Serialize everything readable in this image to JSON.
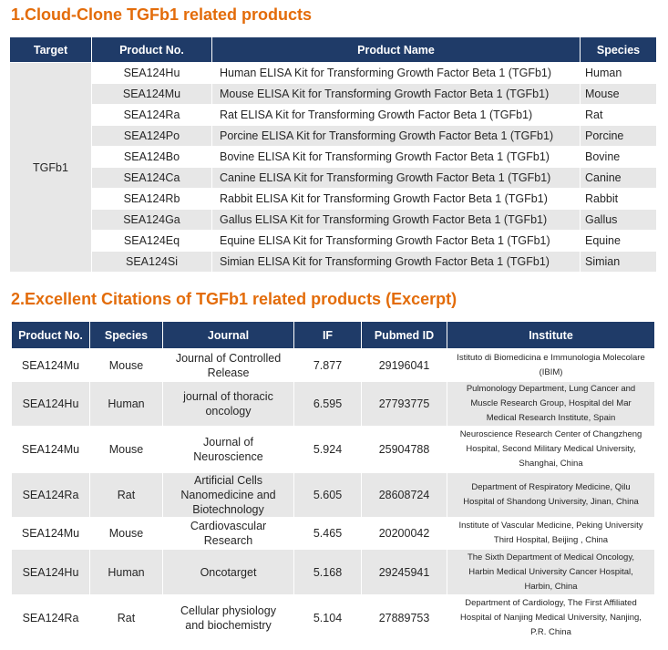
{
  "colors": {
    "title": "#E36C0A",
    "header_bg": "#1F3B68",
    "header_text": "#FFFFFF",
    "stripe": "#E7E7E7"
  },
  "section1": {
    "title": "1.Cloud-Clone TGFb1 related products",
    "headers": {
      "target": "Target",
      "product_no": "Product No.",
      "product_name": "Product Name",
      "species": "Species"
    },
    "target": "TGFb1",
    "rows": [
      {
        "product_no": "SEA124Hu",
        "product_name": "Human ELISA Kit for Transforming Growth Factor Beta 1 (TGFb1)",
        "species": "Human"
      },
      {
        "product_no": "SEA124Mu",
        "product_name": "Mouse ELISA Kit for Transforming Growth Factor Beta 1 (TGFb1)",
        "species": "Mouse"
      },
      {
        "product_no": "SEA124Ra",
        "product_name": "Rat ELISA Kit for Transforming Growth Factor Beta 1 (TGFb1)",
        "species": "Rat"
      },
      {
        "product_no": "SEA124Po",
        "product_name": "Porcine ELISA Kit for Transforming Growth Factor Beta 1 (TGFb1)",
        "species": "Porcine"
      },
      {
        "product_no": "SEA124Bo",
        "product_name": "Bovine ELISA Kit for Transforming Growth Factor Beta 1 (TGFb1)",
        "species": "Bovine"
      },
      {
        "product_no": "SEA124Ca",
        "product_name": "Canine ELISA Kit for Transforming Growth Factor Beta 1 (TGFb1)",
        "species": "Canine"
      },
      {
        "product_no": "SEA124Rb",
        "product_name": "Rabbit ELISA Kit for Transforming Growth Factor Beta 1 (TGFb1)",
        "species": "Rabbit"
      },
      {
        "product_no": "SEA124Ga",
        "product_name": "Gallus ELISA Kit for Transforming Growth Factor Beta 1 (TGFb1)",
        "species": "Gallus"
      },
      {
        "product_no": "SEA124Eq",
        "product_name": "Equine ELISA Kit for Transforming Growth Factor Beta 1 (TGFb1)",
        "species": "Equine"
      },
      {
        "product_no": "SEA124Si",
        "product_name": "Simian ELISA Kit for Transforming Growth Factor Beta 1 (TGFb1)",
        "species": "Simian"
      }
    ]
  },
  "section2": {
    "title": "2.Excellent Citations of TGFb1 related products (Excerpt)",
    "headers": {
      "product_no": "Product No.",
      "species": "Species",
      "journal": "Journal",
      "if": "IF",
      "pubmed_id": "Pubmed ID",
      "institute": "Institute"
    },
    "rows": [
      {
        "product_no": "SEA124Mu",
        "species": "Mouse",
        "journal": "Journal of Controlled Release",
        "if": "7.877",
        "pubmed_id": "29196041",
        "institute": "Istituto di Biomedicina e Immunologia Molecolare (IBIM)"
      },
      {
        "product_no": "SEA124Hu",
        "species": "Human",
        "journal": "journal of thoracic oncology",
        "if": "6.595",
        "pubmed_id": "27793775",
        "institute": "Pulmonology Department, Lung Cancer and Muscle Research Group, Hospital del Mar Medical Research Institute, Spain"
      },
      {
        "product_no": "SEA124Mu",
        "species": "Mouse",
        "journal": "Journal of Neuroscience",
        "if": "5.924",
        "pubmed_id": "25904788",
        "institute": "Neuroscience Research Center of Changzheng Hospital, Second Military Medical University, Shanghai, China"
      },
      {
        "product_no": "SEA124Ra",
        "species": "Rat",
        "journal": "Artificial Cells Nanomedicine and Biotechnology",
        "if": "5.605",
        "pubmed_id": "28608724",
        "institute": "Department of Respiratory Medicine, Qilu Hospital of Shandong University, Jinan, China"
      },
      {
        "product_no": "SEA124Mu",
        "species": "Mouse",
        "journal": "Cardiovascular Research",
        "if": "5.465",
        "pubmed_id": "20200042",
        "institute": "Institute of Vascular Medicine, Peking University Third Hospital, Beijing , China"
      },
      {
        "product_no": "SEA124Hu",
        "species": "Human",
        "journal": "Oncotarget",
        "if": "5.168",
        "pubmed_id": "29245941",
        "institute": "The Sixth Department of Medical Oncology, Harbin Medical University Cancer Hospital, Harbin, China"
      },
      {
        "product_no": "SEA124Ra",
        "species": "Rat",
        "journal": "Cellular physiology and biochemistry",
        "if": "5.104",
        "pubmed_id": "27889753",
        "institute": "Department of Cardiology, The First Affiliated Hospital of Nanjing Medical University, Nanjing, P.R. China"
      }
    ]
  }
}
